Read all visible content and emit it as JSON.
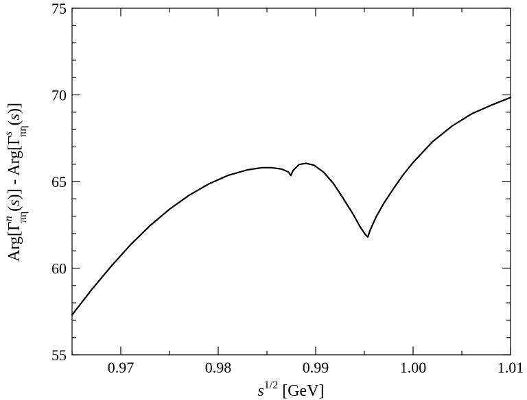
{
  "chart_data": {
    "type": "line",
    "title": "",
    "xlabel": {
      "base": "s",
      "sup": "1/2",
      "rest": " [GeV]"
    },
    "ylabel": {
      "p1": "Arg[Γ",
      "p1_sup": "n",
      "p1_sub": "πη",
      "p2": "(",
      "p2_var": "s",
      "p3": ")] - Arg[Γ",
      "p3_sup": "s",
      "p3_sub": "πη",
      "p4": "(",
      "p4_var": "s",
      "p5": ")]"
    },
    "xlim": [
      0.965,
      1.01
    ],
    "ylim": [
      55,
      75
    ],
    "x_ticks": [
      {
        "value": 0.97,
        "label": "0.97"
      },
      {
        "value": 0.98,
        "label": "0.98"
      },
      {
        "value": 0.99,
        "label": "0.99"
      },
      {
        "value": 1.0,
        "label": "1.00"
      },
      {
        "value": 1.01,
        "label": "1.01"
      }
    ],
    "y_ticks": [
      {
        "value": 55,
        "label": "55"
      },
      {
        "value": 60,
        "label": "60"
      },
      {
        "value": 65,
        "label": "65"
      },
      {
        "value": 70,
        "label": "70"
      },
      {
        "value": 75,
        "label": "75"
      }
    ],
    "x_minor_step": 0.005,
    "y_minor_step": 1,
    "grid": false,
    "series": [
      {
        "color": "#000000",
        "x": [
          0.965,
          0.967,
          0.969,
          0.971,
          0.973,
          0.975,
          0.977,
          0.979,
          0.981,
          0.983,
          0.9845,
          0.9855,
          0.9865,
          0.9872,
          0.98745,
          0.9877,
          0.9883,
          0.989,
          0.9898,
          0.9908,
          0.9918,
          0.9928,
          0.9938,
          0.9946,
          0.9951,
          0.99535,
          0.9956,
          0.9962,
          0.997,
          0.998,
          0.999,
          1.0,
          1.002,
          1.004,
          1.006,
          1.008,
          1.01
        ],
        "y": [
          57.3,
          58.75,
          60.1,
          61.35,
          62.45,
          63.4,
          64.2,
          64.85,
          65.35,
          65.67,
          65.8,
          65.8,
          65.72,
          65.55,
          65.35,
          65.65,
          65.98,
          66.05,
          65.95,
          65.55,
          64.9,
          64.05,
          63.15,
          62.35,
          61.95,
          61.8,
          62.2,
          62.95,
          63.75,
          64.6,
          65.4,
          66.1,
          67.3,
          68.2,
          68.9,
          69.4,
          69.85
        ]
      }
    ]
  }
}
